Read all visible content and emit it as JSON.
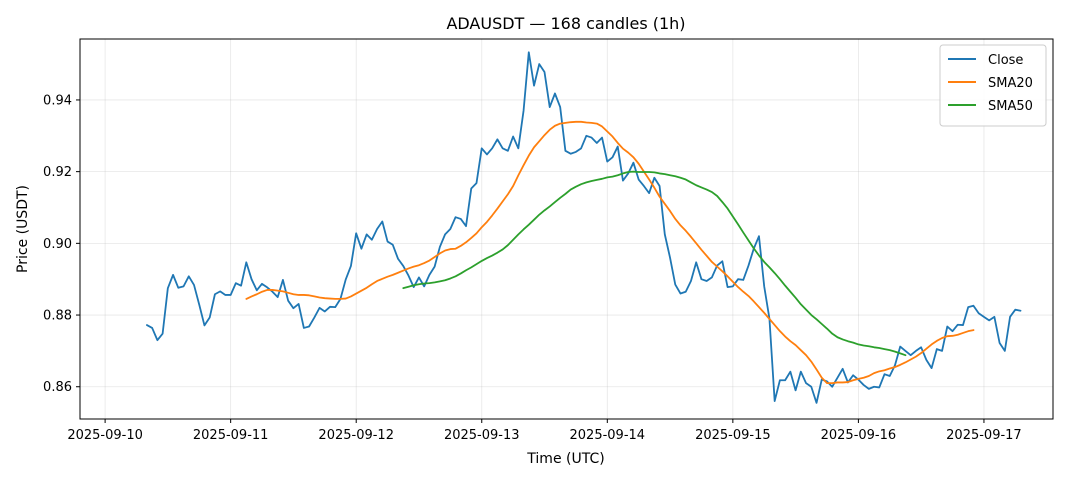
{
  "chart_data": {
    "type": "line",
    "title": "ADAUSDT — 168 candles (1h)",
    "xlabel": "Time (UTC)",
    "ylabel": "Price (USDT)",
    "x_ticks": [
      "2025-09-10",
      "2025-09-11",
      "2025-09-12",
      "2025-09-13",
      "2025-09-14",
      "2025-09-15",
      "2025-09-16",
      "2025-09-17"
    ],
    "y_ticks": [
      "0.86",
      "0.88",
      "0.90",
      "0.92",
      "0.94"
    ],
    "ylim": [
      0.851,
      0.957
    ],
    "x_range_days": [
      -0.2,
      7.55
    ],
    "grid": true,
    "legend_position": "top-right",
    "series": [
      {
        "name": "Close",
        "color": "#1f77b4",
        "start_day": 0.333,
        "step_hours": 1,
        "values": [
          0.8772,
          0.8764,
          0.873,
          0.8748,
          0.8875,
          0.8912,
          0.8876,
          0.888,
          0.8908,
          0.8884,
          0.8829,
          0.8771,
          0.8793,
          0.8858,
          0.8866,
          0.8856,
          0.8856,
          0.8889,
          0.8882,
          0.8947,
          0.89,
          0.8869,
          0.8887,
          0.8877,
          0.8865,
          0.885,
          0.8898,
          0.884,
          0.8819,
          0.8831,
          0.8764,
          0.8768,
          0.8793,
          0.882,
          0.881,
          0.8823,
          0.8822,
          0.8845,
          0.8899,
          0.8937,
          0.9028,
          0.8985,
          0.9025,
          0.901,
          0.904,
          0.9061,
          0.9005,
          0.8996,
          0.8957,
          0.8937,
          0.891,
          0.8878,
          0.8905,
          0.888,
          0.8912,
          0.8935,
          0.899,
          0.9025,
          0.904,
          0.9073,
          0.9068,
          0.9048,
          0.9153,
          0.9168,
          0.9265,
          0.9248,
          0.9265,
          0.929,
          0.9265,
          0.9258,
          0.9298,
          0.9265,
          0.937,
          0.9533,
          0.944,
          0.95,
          0.9478,
          0.938,
          0.9418,
          0.938,
          0.9258,
          0.925,
          0.9255,
          0.9265,
          0.93,
          0.9295,
          0.928,
          0.9295,
          0.9228,
          0.924,
          0.927,
          0.9175,
          0.9195,
          0.9225,
          0.9178,
          0.916,
          0.914,
          0.9183,
          0.916,
          0.9025,
          0.896,
          0.8885,
          0.886,
          0.8865,
          0.8895,
          0.8947,
          0.89,
          0.8895,
          0.8905,
          0.8938,
          0.895,
          0.8878,
          0.888,
          0.89,
          0.8898,
          0.8938,
          0.8985,
          0.902,
          0.888,
          0.879,
          0.856,
          0.8618,
          0.8618,
          0.8642,
          0.859,
          0.8642,
          0.861,
          0.86,
          0.8555,
          0.862,
          0.8615,
          0.86,
          0.8625,
          0.865,
          0.8612,
          0.8632,
          0.862,
          0.8605,
          0.8594,
          0.86,
          0.8598,
          0.8635,
          0.863,
          0.866,
          0.8712,
          0.87,
          0.8688,
          0.87,
          0.871,
          0.8675,
          0.8652,
          0.8705,
          0.87,
          0.8768,
          0.8755,
          0.8773,
          0.8772,
          0.8822,
          0.8826,
          0.8805,
          0.8795,
          0.8785,
          0.8795,
          0.8722,
          0.87,
          0.8795,
          0.8815,
          0.8812
        ]
      },
      {
        "name": "SMA20",
        "color": "#ff7f0e",
        "start_day": 1.125,
        "step_hours": 1,
        "values": [
          0.8845,
          0.8852,
          0.8858,
          0.8865,
          0.887,
          0.887,
          0.8868,
          0.8866,
          0.8862,
          0.8858,
          0.8856,
          0.8856,
          0.8855,
          0.8852,
          0.8849,
          0.8847,
          0.8846,
          0.8845,
          0.8845,
          0.8846,
          0.8852,
          0.886,
          0.8868,
          0.8876,
          0.8886,
          0.8895,
          0.8901,
          0.8907,
          0.8912,
          0.8918,
          0.8924,
          0.893,
          0.8935,
          0.8939,
          0.8945,
          0.8952,
          0.8962,
          0.8972,
          0.898,
          0.8984,
          0.8985,
          0.8993,
          0.9003,
          0.9015,
          0.9028,
          0.9045,
          0.906,
          0.9078,
          0.9097,
          0.9117,
          0.9137,
          0.916,
          0.919,
          0.9218,
          0.9245,
          0.9268,
          0.9285,
          0.9302,
          0.9317,
          0.9328,
          0.9334,
          0.9336,
          0.9338,
          0.9339,
          0.9339,
          0.9337,
          0.9336,
          0.9334,
          0.9326,
          0.9312,
          0.9298,
          0.928,
          0.9264,
          0.9253,
          0.924,
          0.9222,
          0.92,
          0.9178,
          0.9155,
          0.913,
          0.911,
          0.909,
          0.9068,
          0.905,
          0.9035,
          0.9018,
          0.9,
          0.8982,
          0.8965,
          0.8948,
          0.8935,
          0.8922,
          0.8908,
          0.8893,
          0.8878,
          0.8865,
          0.8853,
          0.8838,
          0.8822,
          0.8806,
          0.8789,
          0.8772,
          0.8755,
          0.874,
          0.8727,
          0.8716,
          0.8702,
          0.8688,
          0.867,
          0.8648,
          0.8625,
          0.861,
          0.861,
          0.8612,
          0.8612,
          0.8613,
          0.8618,
          0.8622,
          0.8625,
          0.863,
          0.8638,
          0.8643,
          0.8646,
          0.8651,
          0.8655,
          0.8661,
          0.8668,
          0.8676,
          0.8684,
          0.8694,
          0.8706,
          0.8718,
          0.8728,
          0.8736,
          0.8741,
          0.8742,
          0.8745,
          0.875,
          0.8755,
          0.8758
        ]
      },
      {
        "name": "SMA50",
        "color": "#2ca02c",
        "start_day": 2.375,
        "step_hours": 1,
        "values": [
          0.8875,
          0.8879,
          0.8883,
          0.8886,
          0.8888,
          0.8889,
          0.8891,
          0.8894,
          0.8897,
          0.8902,
          0.8908,
          0.8916,
          0.8925,
          0.8933,
          0.8942,
          0.8951,
          0.8959,
          0.8966,
          0.8974,
          0.8983,
          0.8995,
          0.901,
          0.9025,
          0.9039,
          0.9052,
          0.9066,
          0.908,
          0.9092,
          0.9103,
          0.9115,
          0.9127,
          0.9138,
          0.915,
          0.9158,
          0.9165,
          0.917,
          0.9174,
          0.9177,
          0.918,
          0.9184,
          0.9186,
          0.919,
          0.9195,
          0.9199,
          0.92,
          0.9199,
          0.9199,
          0.9199,
          0.9198,
          0.9195,
          0.9193,
          0.919,
          0.9187,
          0.9183,
          0.9178,
          0.917,
          0.9162,
          0.9156,
          0.915,
          0.9143,
          0.9132,
          0.9115,
          0.9097,
          0.9075,
          0.9053,
          0.903,
          0.9008,
          0.8986,
          0.8966,
          0.8948,
          0.8933,
          0.8917,
          0.89,
          0.8882,
          0.8865,
          0.8848,
          0.883,
          0.8815,
          0.88,
          0.8788,
          0.8775,
          0.8762,
          0.8748,
          0.8738,
          0.8732,
          0.8727,
          0.8723,
          0.8718,
          0.8715,
          0.8713,
          0.871,
          0.8708,
          0.8705,
          0.8702,
          0.8698,
          0.8693,
          0.8688
        ]
      }
    ]
  }
}
